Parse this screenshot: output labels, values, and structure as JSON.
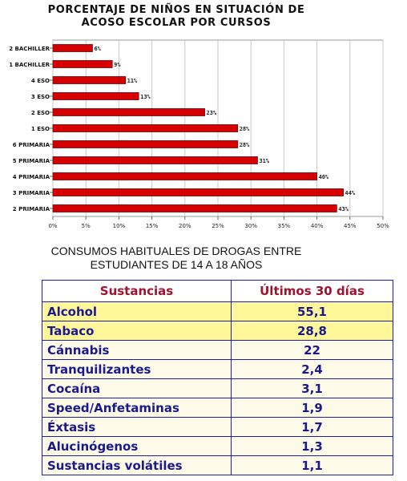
{
  "colors": {
    "bar": "#d40000",
    "bar_edge": "#7a0000",
    "table_border": "#1f1f9e",
    "header_text": "#a0122e",
    "row_text": "#1a1a8c",
    "row_highlight": "#fff79a",
    "row_normal": "#fdfbe8"
  },
  "chart_data": {
    "type": "bar",
    "orientation": "horizontal",
    "title": "PORCENTAJE DE NIÑOS EN SITUACIÓN DE\nACOSO ESCOLAR POR CURSOS",
    "categories": [
      "2 BACHILLER",
      "1 BACHILLER",
      "4 ESO",
      "3 ESO",
      "2 ESO",
      "1 ESO",
      "6 PRIMARIA",
      "5 PRIMARIA",
      "4 PRIMARIA",
      "3 PRIMARIA",
      "2 PRIMARIA"
    ],
    "values": [
      6,
      9,
      11,
      13,
      23,
      28,
      28,
      31,
      40,
      44,
      43
    ],
    "value_labels": [
      "6%",
      "9%",
      "11%",
      "13%",
      "23%",
      "28%",
      "28%",
      "31%",
      "40%",
      "44%",
      "43%"
    ],
    "xlim": [
      0,
      50
    ],
    "xticks": [
      "0%",
      "5%",
      "10%",
      "15%",
      "20%",
      "25%",
      "30%",
      "35%",
      "40%",
      "45%",
      "50%"
    ],
    "grid": true,
    "legend": "none"
  },
  "table": {
    "title": "CONSUMOS HABITUALES DE DROGAS ENTRE\nESTUDIANTES DE 14 A 18 AÑOS",
    "headers": [
      "Sustancias",
      "Últimos 30 días"
    ],
    "rows": [
      {
        "name": "Alcohol",
        "value": "55,1",
        "highlight": true
      },
      {
        "name": "Tabaco",
        "value": "28,8",
        "highlight": true
      },
      {
        "name": "Cánnabis",
        "value": "22",
        "highlight": false
      },
      {
        "name": "Tranquilizantes",
        "value": "2,4",
        "highlight": false
      },
      {
        "name": "Cocaína",
        "value": "3,1",
        "highlight": false
      },
      {
        "name": "Speed/Anfetaminas",
        "value": "1,9",
        "highlight": false
      },
      {
        "name": "Éxtasis",
        "value": "1,7",
        "highlight": false
      },
      {
        "name": "Alucinógenos",
        "value": "1,3",
        "highlight": false
      },
      {
        "name": "Sustancias volátiles",
        "value": "1,1",
        "highlight": false
      }
    ]
  }
}
